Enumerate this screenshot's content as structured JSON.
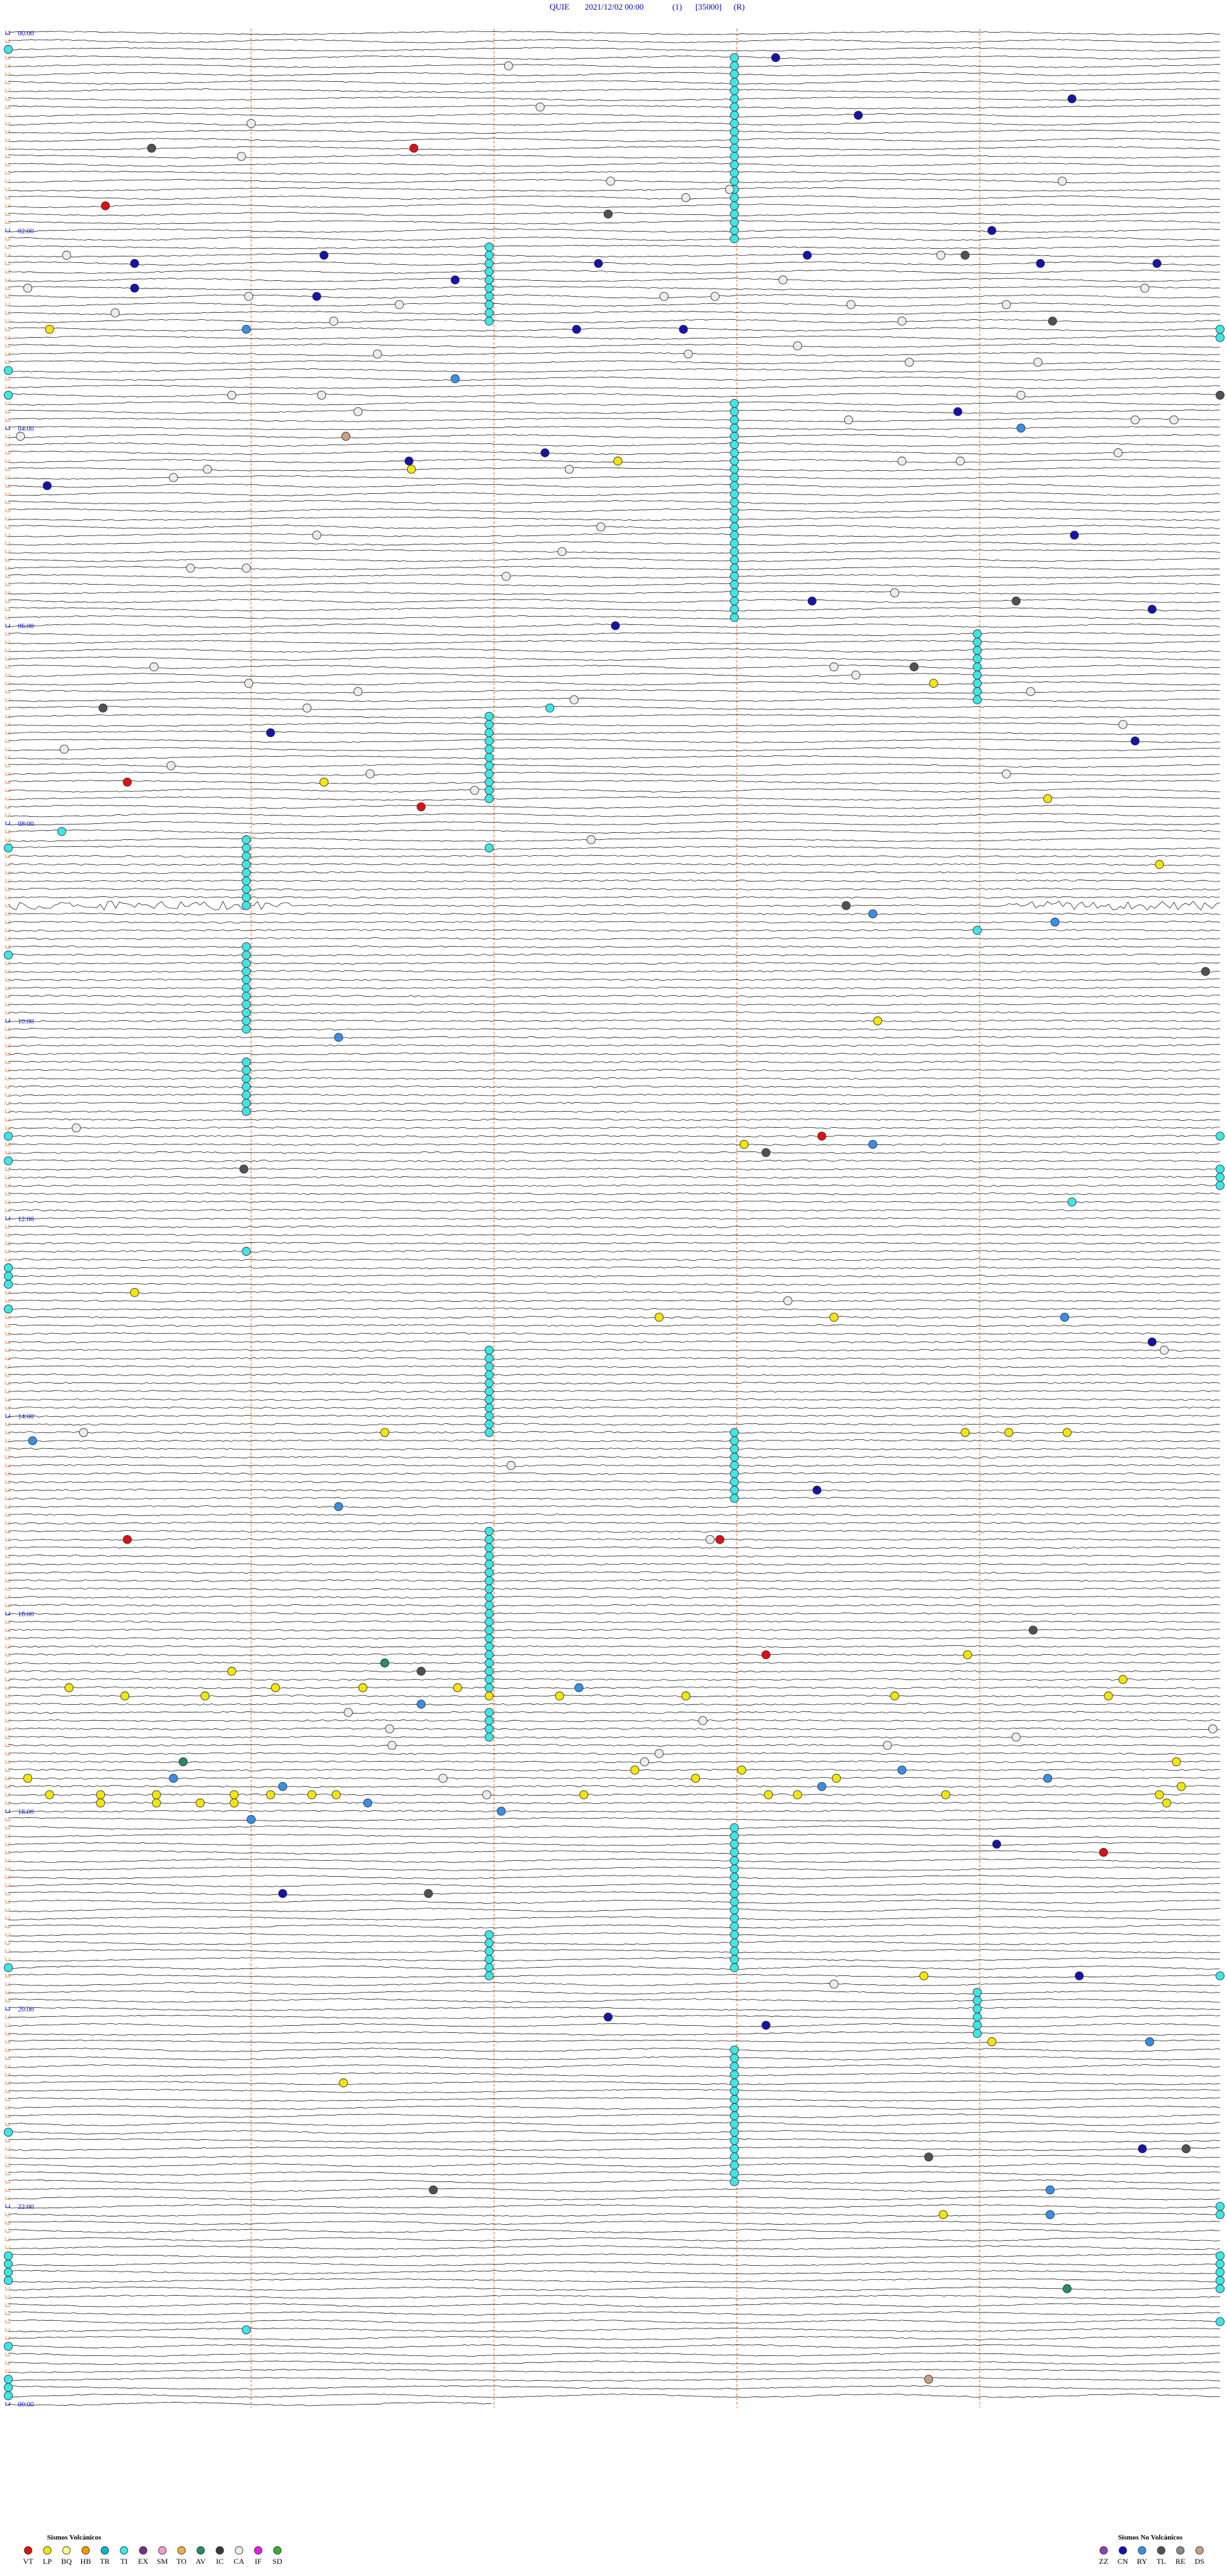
{
  "header": {
    "station": "QUIE",
    "datetime": "2021/12/02 00:00",
    "channel": "(1)",
    "scale": "[35000]",
    "mode": "(R)"
  },
  "time_labels": [
    "00:00",
    "02:00",
    "04:00",
    "06:00",
    "08:00",
    "10:00",
    "12:00",
    "14:00",
    "16:00",
    "18:00",
    "20:00",
    "22:00",
    "00:00"
  ],
  "legend": {
    "volcanic": {
      "title": "Sismos Volcánicos",
      "items": [
        {
          "code": "VT",
          "color": "#e01010"
        },
        {
          "code": "LP",
          "color": "#f5e600"
        },
        {
          "code": "BQ",
          "color": "#ffff90"
        },
        {
          "code": "HB",
          "color": "#ff9a00"
        },
        {
          "code": "TR",
          "color": "#00b8c8"
        },
        {
          "code": "TI",
          "color": "#3ee6e6"
        },
        {
          "code": "EX",
          "color": "#7a2a8a"
        },
        {
          "code": "SM",
          "color": "#f0a0d0"
        },
        {
          "code": "TO",
          "color": "#f0b040"
        },
        {
          "code": "AV",
          "color": "#2a8a6a"
        },
        {
          "code": "IC",
          "color": "#3a3a3a"
        },
        {
          "code": "CA",
          "color": "#ececec"
        },
        {
          "code": "IF",
          "color": "#e020e0"
        },
        {
          "code": "SD",
          "color": "#30b030"
        }
      ]
    },
    "non_volcanic": {
      "title": "Sismos No Volcánicos",
      "items": [
        {
          "code": "ZZ",
          "color": "#8e44ad"
        },
        {
          "code": "CN",
          "color": "#1414a8"
        },
        {
          "code": "RY",
          "color": "#3a8ee6"
        },
        {
          "code": "TL",
          "color": "#505058"
        },
        {
          "code": "RE",
          "color": "#8a8a8a"
        },
        {
          "code": "DS",
          "color": "#c8a080"
        }
      ]
    }
  },
  "event_runs": [
    {
      "type": "TI",
      "rows": [
        3,
        25
      ],
      "minute": 2.99
    },
    {
      "type": "TI",
      "rows": [
        26,
        35
      ],
      "minute": 1.98
    },
    {
      "type": "TI",
      "rows": [
        45,
        71
      ],
      "minute": 2.99
    },
    {
      "type": "TI",
      "rows": [
        73,
        81
      ],
      "minute": 3.99
    },
    {
      "type": "TI",
      "rows": [
        83,
        93
      ],
      "minute": 1.98
    },
    {
      "type": "TI",
      "rows": [
        98,
        106
      ],
      "minute": 0.98
    },
    {
      "type": "TI",
      "rows": [
        111,
        121
      ],
      "minute": 0.98
    },
    {
      "type": "TI",
      "rows": [
        125,
        131
      ],
      "minute": 0.98
    },
    {
      "type": "TI",
      "rows": [
        160,
        170
      ],
      "minute": 1.98
    },
    {
      "type": "TI",
      "rows": [
        170,
        178
      ],
      "minute": 2.99
    },
    {
      "type": "TI",
      "rows": [
        182,
        201
      ],
      "minute": 1.98
    },
    {
      "type": "TI",
      "rows": [
        204,
        207
      ],
      "minute": 1.98
    },
    {
      "type": "TI",
      "rows": [
        218,
        235
      ],
      "minute": 2.99
    },
    {
      "type": "TI",
      "rows": [
        231,
        236
      ],
      "minute": 1.98
    },
    {
      "type": "TI",
      "rows": [
        238,
        243
      ],
      "minute": 3.99
    },
    {
      "type": "TI",
      "rows": [
        245,
        261
      ],
      "minute": 2.99
    }
  ],
  "events": [
    {
      "type": "CA",
      "at": [
        [
          4,
          2.06
        ],
        [
          9,
          2.19
        ],
        [
          11,
          1.0
        ],
        [
          20,
          2.79
        ],
        [
          19,
          2.97
        ],
        [
          15,
          0.96
        ],
        [
          18,
          2.48
        ],
        [
          18,
          4.34
        ],
        [
          27,
          0.24
        ],
        [
          31,
          0.08
        ],
        [
          32,
          0.99
        ],
        [
          33,
          1.61
        ],
        [
          35,
          1.34
        ],
        [
          34,
          0.44
        ],
        [
          32,
          2.7
        ],
        [
          32,
          2.91
        ],
        [
          30,
          3.19
        ],
        [
          33,
          3.47
        ],
        [
          35,
          3.68
        ],
        [
          27,
          3.84
        ],
        [
          33,
          4.11
        ],
        [
          31,
          4.68
        ],
        [
          38,
          3.25
        ],
        [
          39,
          1.52
        ],
        [
          39,
          2.8
        ],
        [
          40,
          3.71
        ],
        [
          40,
          4.24
        ],
        [
          44,
          0.92
        ],
        [
          44,
          1.29
        ],
        [
          46,
          1.44
        ],
        [
          47,
          3.46
        ],
        [
          44,
          4.17
        ],
        [
          49,
          0.05
        ],
        [
          47,
          4.64
        ],
        [
          47,
          4.8
        ],
        [
          54,
          0.68
        ],
        [
          53,
          0.82
        ],
        [
          53,
          2.31
        ],
        [
          52,
          3.68
        ],
        [
          52,
          3.92
        ],
        [
          51,
          4.57
        ],
        [
          61,
          1.27
        ],
        [
          60,
          2.44
        ],
        [
          65,
          0.75
        ],
        [
          65,
          0.98
        ],
        [
          63,
          2.28
        ],
        [
          66,
          2.05
        ],
        [
          68,
          3.65
        ],
        [
          77,
          0.6
        ],
        [
          79,
          0.99
        ],
        [
          80,
          1.44
        ],
        [
          82,
          1.23
        ],
        [
          81,
          2.33
        ],
        [
          77,
          3.4
        ],
        [
          78,
          3.49
        ],
        [
          80,
          4.21
        ],
        [
          84,
          4.59
        ],
        [
          87,
          0.23
        ],
        [
          90,
          1.49
        ],
        [
          89,
          0.67
        ],
        [
          92,
          1.92
        ],
        [
          90,
          4.11
        ],
        [
          98,
          2.4
        ],
        [
          133,
          0.28
        ],
        [
          174,
          2.07
        ],
        [
          170,
          0.31
        ],
        [
          154,
          3.21
        ],
        [
          160,
          4.76
        ],
        [
          183,
          2.89
        ],
        [
          204,
          1.4
        ],
        [
          206,
          1.57
        ],
        [
          208,
          1.58
        ],
        [
          209,
          2.68
        ],
        [
          208,
          3.62
        ],
        [
          207,
          4.15
        ],
        [
          206,
          4.96
        ],
        [
          205,
          2.86
        ],
        [
          214,
          1.97
        ],
        [
          210,
          2.62
        ],
        [
          212,
          1.79
        ],
        [
          237,
          3.4
        ]
      ]
    },
    {
      "type": "CN",
      "at": [
        [
          3,
          3.16
        ],
        [
          8,
          4.38
        ],
        [
          10,
          3.5
        ],
        [
          24,
          4.05
        ],
        [
          27,
          3.29
        ],
        [
          28,
          0.52
        ],
        [
          27,
          1.3
        ],
        [
          28,
          2.43
        ],
        [
          28,
          4.25
        ],
        [
          28,
          4.73
        ],
        [
          30,
          1.84
        ],
        [
          31,
          0.52
        ],
        [
          32,
          1.27
        ],
        [
          36,
          2.34
        ],
        [
          36,
          2.78
        ],
        [
          46,
          3.91
        ],
        [
          52,
          1.65
        ],
        [
          51,
          2.21
        ],
        [
          55,
          0.16
        ],
        [
          61,
          4.39
        ],
        [
          69,
          3.31
        ],
        [
          70,
          4.71
        ],
        [
          72,
          2.5
        ],
        [
          85,
          1.08
        ],
        [
          86,
          4.64
        ],
        [
          159,
          4.71
        ],
        [
          177,
          3.33
        ],
        [
          220,
          4.07
        ],
        [
          226,
          1.13
        ],
        [
          236,
          4.41
        ],
        [
          241,
          2.47
        ],
        [
          242,
          3.12
        ],
        [
          257,
          4.67
        ]
      ]
    },
    {
      "type": "TL",
      "at": [
        [
          14,
          0.59
        ],
        [
          22,
          2.47
        ],
        [
          27,
          3.94
        ],
        [
          35,
          4.3
        ],
        [
          44,
          4.99
        ],
        [
          69,
          4.15
        ],
        [
          77,
          3.73
        ],
        [
          82,
          0.39
        ],
        [
          106,
          3.45
        ],
        [
          114,
          4.93
        ],
        [
          136,
          3.12
        ],
        [
          138,
          0.97
        ],
        [
          194,
          4.22
        ],
        [
          199,
          1.7
        ],
        [
          226,
          1.73
        ],
        [
          257,
          4.85
        ],
        [
          258,
          3.79
        ],
        [
          262,
          1.75
        ]
      ]
    },
    {
      "type": "VT",
      "at": [
        [
          14,
          1.67
        ],
        [
          21,
          0.4
        ],
        [
          91,
          0.49
        ],
        [
          94,
          1.7
        ],
        [
          134,
          3.35
        ],
        [
          183,
          0.49
        ],
        [
          183,
          2.93
        ],
        [
          197,
          3.12
        ],
        [
          221,
          4.51
        ]
      ]
    },
    {
      "type": "LP",
      "at": [
        [
          36,
          0.17
        ],
        [
          53,
          1.66
        ],
        [
          52,
          2.51
        ],
        [
          79,
          3.81
        ],
        [
          91,
          1.3
        ],
        [
          93,
          4.28
        ],
        [
          101,
          4.74
        ],
        [
          120,
          3.58
        ],
        [
          135,
          3.03
        ],
        [
          153,
          0.52
        ],
        [
          156,
          2.68
        ],
        [
          156,
          3.4
        ],
        [
          170,
          1.55
        ],
        [
          170,
          3.94
        ],
        [
          170,
          4.12
        ],
        [
          170,
          4.36
        ],
        [
          197,
          3.95
        ],
        [
          201,
          0.25
        ],
        [
          202,
          0.48
        ],
        [
          202,
          0.81
        ],
        [
          201,
          1.1
        ],
        [
          201,
          1.46
        ],
        [
          201,
          1.85
        ],
        [
          202,
          1.98
        ],
        [
          202,
          2.27
        ],
        [
          202,
          2.79
        ],
        [
          202,
          3.65
        ],
        [
          202,
          4.53
        ],
        [
          200,
          4.59
        ],
        [
          199,
          0.92
        ],
        [
          212,
          0.08
        ],
        [
          214,
          0.17
        ],
        [
          214,
          0.38
        ],
        [
          215,
          0.38
        ],
        [
          214,
          0.61
        ],
        [
          215,
          0.61
        ],
        [
          215,
          0.79
        ],
        [
          214,
          0.93
        ],
        [
          215,
          0.93
        ],
        [
          214,
          1.08
        ],
        [
          214,
          1.25
        ],
        [
          214,
          1.35
        ],
        [
          214,
          2.37
        ],
        [
          211,
          2.58
        ],
        [
          212,
          2.83
        ],
        [
          211,
          3.02
        ],
        [
          214,
          3.13
        ],
        [
          214,
          3.25
        ],
        [
          212,
          3.41
        ],
        [
          214,
          3.86
        ],
        [
          214,
          4.74
        ],
        [
          215,
          4.77
        ],
        [
          210,
          4.81
        ],
        [
          213,
          4.83
        ],
        [
          236,
          3.77
        ],
        [
          244,
          4.05
        ],
        [
          249,
          1.38
        ],
        [
          265,
          3.85
        ]
      ]
    },
    {
      "type": "RY",
      "at": [
        [
          36,
          0.98
        ],
        [
          42,
          1.84
        ],
        [
          48,
          4.17
        ],
        [
          107,
          3.56
        ],
        [
          108,
          4.31
        ],
        [
          122,
          1.36
        ],
        [
          135,
          3.56
        ],
        [
          156,
          4.35
        ],
        [
          171,
          0.1
        ],
        [
          179,
          1.36
        ],
        [
          201,
          2.35
        ],
        [
          203,
          1.7
        ],
        [
          212,
          0.68
        ],
        [
          213,
          1.13
        ],
        [
          215,
          1.48
        ],
        [
          213,
          3.35
        ],
        [
          211,
          3.68
        ],
        [
          212,
          4.28
        ],
        [
          217,
          1.0
        ],
        [
          216,
          2.03
        ],
        [
          244,
          4.7
        ],
        [
          262,
          4.29
        ],
        [
          265,
          4.29
        ]
      ]
    },
    {
      "type": "TI",
      "at": [
        [
          82,
          2.23
        ],
        [
          97,
          0.22
        ],
        [
          99,
          1.98
        ],
        [
          109,
          3.99
        ],
        [
          142,
          4.38
        ],
        [
          148,
          0.98
        ],
        [
          236,
          4.99
        ],
        [
          279,
          0.98
        ],
        [
          2,
          0
        ],
        [
          41,
          0
        ],
        [
          44,
          0
        ],
        [
          99,
          0
        ],
        [
          112,
          0
        ],
        [
          134,
          0
        ],
        [
          137,
          0
        ],
        [
          150,
          0
        ],
        [
          151,
          0
        ],
        [
          152,
          0
        ],
        [
          155,
          0
        ],
        [
          235,
          0
        ],
        [
          255,
          0
        ],
        [
          270,
          0
        ],
        [
          271,
          0
        ],
        [
          272,
          0
        ],
        [
          273,
          0
        ],
        [
          281,
          0
        ],
        [
          285,
          0
        ],
        [
          286,
          0
        ],
        [
          287,
          0
        ],
        [
          36,
          4.99
        ],
        [
          37,
          4.99
        ],
        [
          134,
          4.99
        ],
        [
          138,
          4.99
        ],
        [
          139,
          4.99
        ],
        [
          140,
          4.99
        ],
        [
          264,
          4.99
        ],
        [
          265,
          4.99
        ],
        [
          270,
          4.99
        ],
        [
          271,
          4.99
        ],
        [
          272,
          4.99
        ],
        [
          273,
          4.99
        ],
        [
          274,
          4.99
        ],
        [
          278,
          4.99
        ]
      ]
    },
    {
      "type": "AV",
      "at": [
        [
          198,
          1.55
        ],
        [
          210,
          0.72
        ],
        [
          274,
          4.36
        ]
      ]
    },
    {
      "type": "DS",
      "at": [
        [
          49,
          1.39
        ],
        [
          285,
          3.79
        ]
      ]
    }
  ]
}
